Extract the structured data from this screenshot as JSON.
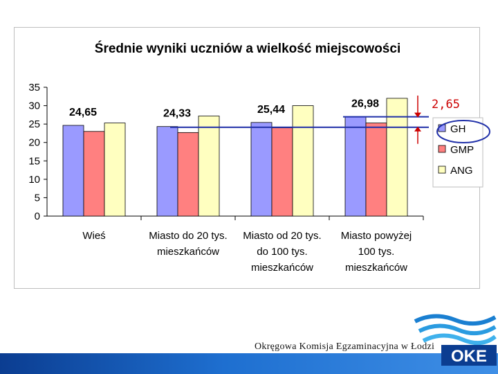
{
  "chart_data": {
    "type": "bar",
    "title": "Średnie wyniki uczniów a wielkość miejscowości",
    "categories": [
      [
        "Wieś"
      ],
      [
        "Miasto do 20 tys.",
        "mieszkańców"
      ],
      [
        "Miasto od 20 tys.",
        "do 100 tys.",
        "mieszkańców"
      ],
      [
        "Miasto powyżej",
        "100 tys.",
        "mieszkańców"
      ]
    ],
    "series": [
      {
        "name": "GH",
        "color": "#9a9aff",
        "values": [
          24.65,
          24.33,
          25.44,
          26.98
        ]
      },
      {
        "name": "GMP",
        "color": "#ff8080",
        "values": [
          23.0,
          22.7,
          24.0,
          25.3
        ]
      },
      {
        "name": "ANG",
        "color": "#ffffc0",
        "values": [
          25.3,
          27.2,
          30.0,
          32.0
        ]
      }
    ],
    "data_labels": [
      "24,65",
      "24,33",
      "25,44",
      "26,98"
    ],
    "ylim": [
      0,
      35
    ],
    "yticks": [
      "0",
      "5",
      "10",
      "15",
      "20",
      "25",
      "30",
      "35"
    ],
    "grid": false,
    "legend_position": "right",
    "annotation": {
      "text": "2,65",
      "color": "#cc0000"
    },
    "reference_line_color": "#1f2fa8"
  },
  "footer": {
    "text": "Okręgowa Komisja Egzaminacyjna w Łodzi"
  }
}
